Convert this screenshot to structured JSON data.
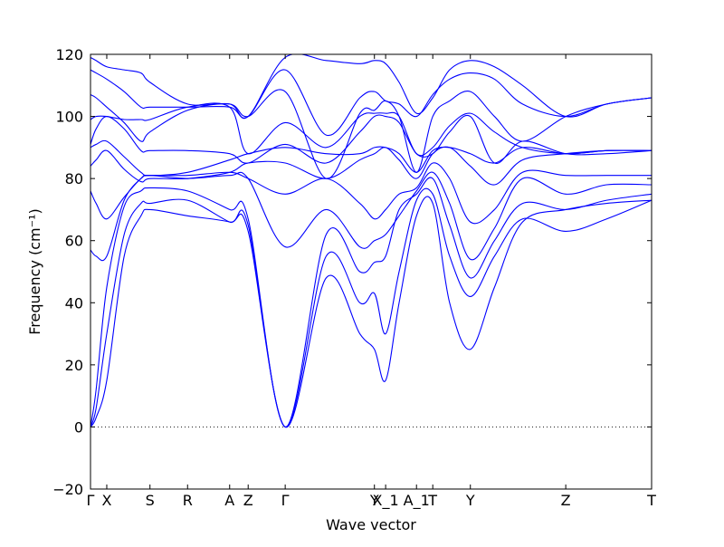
{
  "chart_data": {
    "type": "line",
    "title": "",
    "xlabel": "Wave vector",
    "ylabel": "Frequency (cm⁻¹)",
    "ylim": [
      -20,
      120
    ],
    "yticks": [
      -20,
      0,
      20,
      40,
      60,
      80,
      100,
      120
    ],
    "grid": false,
    "legend": "none",
    "zero_line": "dotted",
    "line_color": "#0000ff",
    "x_kind": "path_fraction",
    "xlim": [
      0,
      1
    ],
    "high_symmetry_points": [
      {
        "label": "Γ",
        "x": 0.0
      },
      {
        "label": "X",
        "x": 0.029
      },
      {
        "label": "S",
        "x": 0.106
      },
      {
        "label": "R",
        "x": 0.173
      },
      {
        "label": "A",
        "x": 0.248
      },
      {
        "label": "Z",
        "x": 0.281
      },
      {
        "label": "Γ",
        "x": 0.347
      },
      {
        "label": "Y",
        "x": 0.506
      },
      {
        "label": "X_1",
        "x": 0.526
      },
      {
        "label": "A_1",
        "x": 0.581
      },
      {
        "label": "T",
        "x": 0.61
      },
      {
        "label": "Y",
        "x": 0.677
      },
      {
        "label": "Z",
        "x": 0.847
      },
      {
        "label": "T",
        "x": 1.0
      }
    ],
    "series": [
      {
        "values": [
          [
            0,
            0
          ],
          [
            0.01,
            3
          ],
          [
            0.029,
            15
          ],
          [
            0.06,
            55
          ],
          [
            0.09,
            68
          ],
          [
            0.106,
            70
          ],
          [
            0.173,
            68
          ],
          [
            0.248,
            66
          ],
          [
            0.281,
            63
          ],
          [
            0.347,
            0
          ],
          [
            0.42,
            48
          ],
          [
            0.48,
            30
          ],
          [
            0.506,
            25
          ],
          [
            0.526,
            15
          ],
          [
            0.55,
            40
          ],
          [
            0.581,
            68
          ],
          [
            0.61,
            72
          ],
          [
            0.64,
            40
          ],
          [
            0.677,
            25
          ],
          [
            0.72,
            45
          ],
          [
            0.77,
            66
          ],
          [
            0.847,
            70
          ],
          [
            0.92,
            72
          ],
          [
            1.0,
            73
          ]
        ]
      },
      {
        "values": [
          [
            0,
            0
          ],
          [
            0.01,
            6
          ],
          [
            0.029,
            30
          ],
          [
            0.06,
            62
          ],
          [
            0.09,
            72
          ],
          [
            0.106,
            72
          ],
          [
            0.173,
            73
          ],
          [
            0.248,
            66
          ],
          [
            0.281,
            65
          ],
          [
            0.347,
            0
          ],
          [
            0.42,
            55
          ],
          [
            0.48,
            40
          ],
          [
            0.506,
            43
          ],
          [
            0.526,
            30
          ],
          [
            0.55,
            50
          ],
          [
            0.581,
            73
          ],
          [
            0.61,
            75
          ],
          [
            0.64,
            55
          ],
          [
            0.677,
            42
          ],
          [
            0.72,
            55
          ],
          [
            0.77,
            67
          ],
          [
            0.847,
            63
          ],
          [
            0.92,
            67
          ],
          [
            1.0,
            73
          ]
        ]
      },
      {
        "values": [
          [
            0,
            0
          ],
          [
            0.01,
            12
          ],
          [
            0.029,
            45
          ],
          [
            0.06,
            71
          ],
          [
            0.09,
            76
          ],
          [
            0.106,
            77
          ],
          [
            0.173,
            76
          ],
          [
            0.248,
            70
          ],
          [
            0.281,
            67
          ],
          [
            0.347,
            0
          ],
          [
            0.42,
            62
          ],
          [
            0.48,
            50
          ],
          [
            0.506,
            53
          ],
          [
            0.526,
            55
          ],
          [
            0.55,
            70
          ],
          [
            0.581,
            75
          ],
          [
            0.61,
            80
          ],
          [
            0.64,
            65
          ],
          [
            0.677,
            48
          ],
          [
            0.72,
            60
          ],
          [
            0.77,
            72
          ],
          [
            0.847,
            70
          ],
          [
            0.92,
            73
          ],
          [
            1.0,
            75
          ]
        ]
      },
      {
        "values": [
          [
            0,
            57
          ],
          [
            0.01,
            55
          ],
          [
            0.029,
            55
          ],
          [
            0.06,
            73
          ],
          [
            0.09,
            80
          ],
          [
            0.106,
            81
          ],
          [
            0.173,
            80
          ],
          [
            0.248,
            81
          ],
          [
            0.281,
            80
          ],
          [
            0.347,
            58
          ],
          [
            0.42,
            70
          ],
          [
            0.48,
            58
          ],
          [
            0.506,
            60
          ],
          [
            0.526,
            62
          ],
          [
            0.55,
            68
          ],
          [
            0.581,
            76
          ],
          [
            0.61,
            82
          ],
          [
            0.64,
            72
          ],
          [
            0.677,
            54
          ],
          [
            0.72,
            64
          ],
          [
            0.77,
            80
          ],
          [
            0.847,
            75
          ],
          [
            0.92,
            78
          ],
          [
            1.0,
            78
          ]
        ]
      },
      {
        "values": [
          [
            0,
            76
          ],
          [
            0.01,
            72
          ],
          [
            0.029,
            67
          ],
          [
            0.06,
            74
          ],
          [
            0.09,
            80
          ],
          [
            0.106,
            81
          ],
          [
            0.173,
            81
          ],
          [
            0.248,
            82
          ],
          [
            0.281,
            80
          ],
          [
            0.347,
            75
          ],
          [
            0.42,
            80
          ],
          [
            0.48,
            72
          ],
          [
            0.506,
            67
          ],
          [
            0.526,
            70
          ],
          [
            0.55,
            75
          ],
          [
            0.581,
            77
          ],
          [
            0.61,
            85
          ],
          [
            0.64,
            80
          ],
          [
            0.677,
            66
          ],
          [
            0.72,
            70
          ],
          [
            0.77,
            82
          ],
          [
            0.847,
            81
          ],
          [
            0.92,
            81
          ],
          [
            1.0,
            81
          ]
        ]
      },
      {
        "values": [
          [
            0,
            84
          ],
          [
            0.01,
            86
          ],
          [
            0.029,
            89
          ],
          [
            0.06,
            83
          ],
          [
            0.09,
            79
          ],
          [
            0.106,
            80
          ],
          [
            0.173,
            80
          ],
          [
            0.248,
            82
          ],
          [
            0.281,
            85
          ],
          [
            0.347,
            85
          ],
          [
            0.42,
            80
          ],
          [
            0.48,
            86
          ],
          [
            0.506,
            88
          ],
          [
            0.526,
            90
          ],
          [
            0.55,
            86
          ],
          [
            0.581,
            80
          ],
          [
            0.61,
            88
          ],
          [
            0.64,
            90
          ],
          [
            0.677,
            84
          ],
          [
            0.72,
            78
          ],
          [
            0.77,
            86
          ],
          [
            0.847,
            88
          ],
          [
            0.92,
            89
          ],
          [
            1.0,
            89
          ]
        ]
      },
      {
        "values": [
          [
            0,
            90
          ],
          [
            0.01,
            91
          ],
          [
            0.029,
            92
          ],
          [
            0.06,
            87
          ],
          [
            0.09,
            82
          ],
          [
            0.106,
            81
          ],
          [
            0.173,
            82
          ],
          [
            0.248,
            86
          ],
          [
            0.281,
            88
          ],
          [
            0.347,
            90
          ],
          [
            0.42,
            88
          ],
          [
            0.48,
            88
          ],
          [
            0.506,
            90
          ],
          [
            0.526,
            90
          ],
          [
            0.55,
            88
          ],
          [
            0.581,
            82
          ],
          [
            0.61,
            89
          ],
          [
            0.64,
            90
          ],
          [
            0.677,
            88
          ],
          [
            0.72,
            85
          ],
          [
            0.77,
            90
          ],
          [
            0.847,
            88
          ],
          [
            0.92,
            89
          ],
          [
            1.0,
            89
          ]
        ]
      },
      {
        "values": [
          [
            0,
            91
          ],
          [
            0.01,
            96
          ],
          [
            0.029,
            100
          ],
          [
            0.06,
            96
          ],
          [
            0.09,
            89
          ],
          [
            0.106,
            89
          ],
          [
            0.173,
            89
          ],
          [
            0.248,
            88
          ],
          [
            0.281,
            85
          ],
          [
            0.347,
            91
          ],
          [
            0.42,
            85
          ],
          [
            0.48,
            95
          ],
          [
            0.506,
            100
          ],
          [
            0.526,
            100
          ],
          [
            0.55,
            98
          ],
          [
            0.581,
            88
          ],
          [
            0.61,
            88
          ],
          [
            0.64,
            95
          ],
          [
            0.677,
            100
          ],
          [
            0.72,
            85
          ],
          [
            0.77,
            92
          ],
          [
            0.847,
            88
          ],
          [
            0.92,
            88
          ],
          [
            1.0,
            89
          ]
        ]
      },
      {
        "values": [
          [
            0,
            99
          ],
          [
            0.01,
            100
          ],
          [
            0.029,
            100
          ],
          [
            0.06,
            99
          ],
          [
            0.09,
            99
          ],
          [
            0.106,
            99
          ],
          [
            0.173,
            103
          ],
          [
            0.248,
            103
          ],
          [
            0.281,
            88
          ],
          [
            0.347,
            98
          ],
          [
            0.42,
            90
          ],
          [
            0.48,
            100
          ],
          [
            0.506,
            101
          ],
          [
            0.526,
            101
          ],
          [
            0.55,
            100
          ],
          [
            0.581,
            88
          ],
          [
            0.61,
            90
          ],
          [
            0.64,
            97
          ],
          [
            0.677,
            101
          ],
          [
            0.72,
            95
          ],
          [
            0.77,
            90
          ],
          [
            0.847,
            88
          ],
          [
            0.92,
            89
          ],
          [
            1.0,
            89
          ]
        ]
      },
      {
        "values": [
          [
            0,
            107
          ],
          [
            0.01,
            106
          ],
          [
            0.029,
            103
          ],
          [
            0.06,
            98
          ],
          [
            0.09,
            92
          ],
          [
            0.106,
            95
          ],
          [
            0.173,
            102
          ],
          [
            0.248,
            104
          ],
          [
            0.281,
            100
          ],
          [
            0.347,
            108
          ],
          [
            0.42,
            80
          ],
          [
            0.48,
            101
          ],
          [
            0.506,
            102
          ],
          [
            0.526,
            105
          ],
          [
            0.55,
            100
          ],
          [
            0.581,
            82
          ],
          [
            0.61,
            100
          ],
          [
            0.64,
            105
          ],
          [
            0.677,
            108
          ],
          [
            0.72,
            100
          ],
          [
            0.77,
            92
          ],
          [
            0.847,
            100
          ],
          [
            0.92,
            104
          ],
          [
            1.0,
            106
          ]
        ]
      },
      {
        "values": [
          [
            0,
            115
          ],
          [
            0.01,
            114
          ],
          [
            0.029,
            112
          ],
          [
            0.06,
            108
          ],
          [
            0.09,
            103
          ],
          [
            0.106,
            103
          ],
          [
            0.173,
            103
          ],
          [
            0.248,
            103
          ],
          [
            0.281,
            100
          ],
          [
            0.347,
            115
          ],
          [
            0.42,
            94
          ],
          [
            0.48,
            106
          ],
          [
            0.506,
            108
          ],
          [
            0.526,
            105
          ],
          [
            0.55,
            104
          ],
          [
            0.581,
            100
          ],
          [
            0.61,
            107
          ],
          [
            0.64,
            112
          ],
          [
            0.677,
            114
          ],
          [
            0.72,
            112
          ],
          [
            0.77,
            104
          ],
          [
            0.847,
            100
          ],
          [
            0.92,
            104
          ],
          [
            1.0,
            106
          ]
        ]
      },
      {
        "values": [
          [
            0,
            119
          ],
          [
            0.01,
            118
          ],
          [
            0.029,
            116
          ],
          [
            0.06,
            115
          ],
          [
            0.09,
            114
          ],
          [
            0.106,
            111
          ],
          [
            0.173,
            104
          ],
          [
            0.248,
            104
          ],
          [
            0.281,
            100
          ],
          [
            0.347,
            119
          ],
          [
            0.42,
            118
          ],
          [
            0.48,
            117
          ],
          [
            0.506,
            118
          ],
          [
            0.526,
            117
          ],
          [
            0.55,
            111
          ],
          [
            0.581,
            101
          ],
          [
            0.61,
            106
          ],
          [
            0.64,
            115
          ],
          [
            0.677,
            118
          ],
          [
            0.72,
            116
          ],
          [
            0.77,
            110
          ],
          [
            0.847,
            100
          ],
          [
            0.92,
            104
          ],
          [
            1.0,
            106
          ]
        ]
      }
    ]
  }
}
